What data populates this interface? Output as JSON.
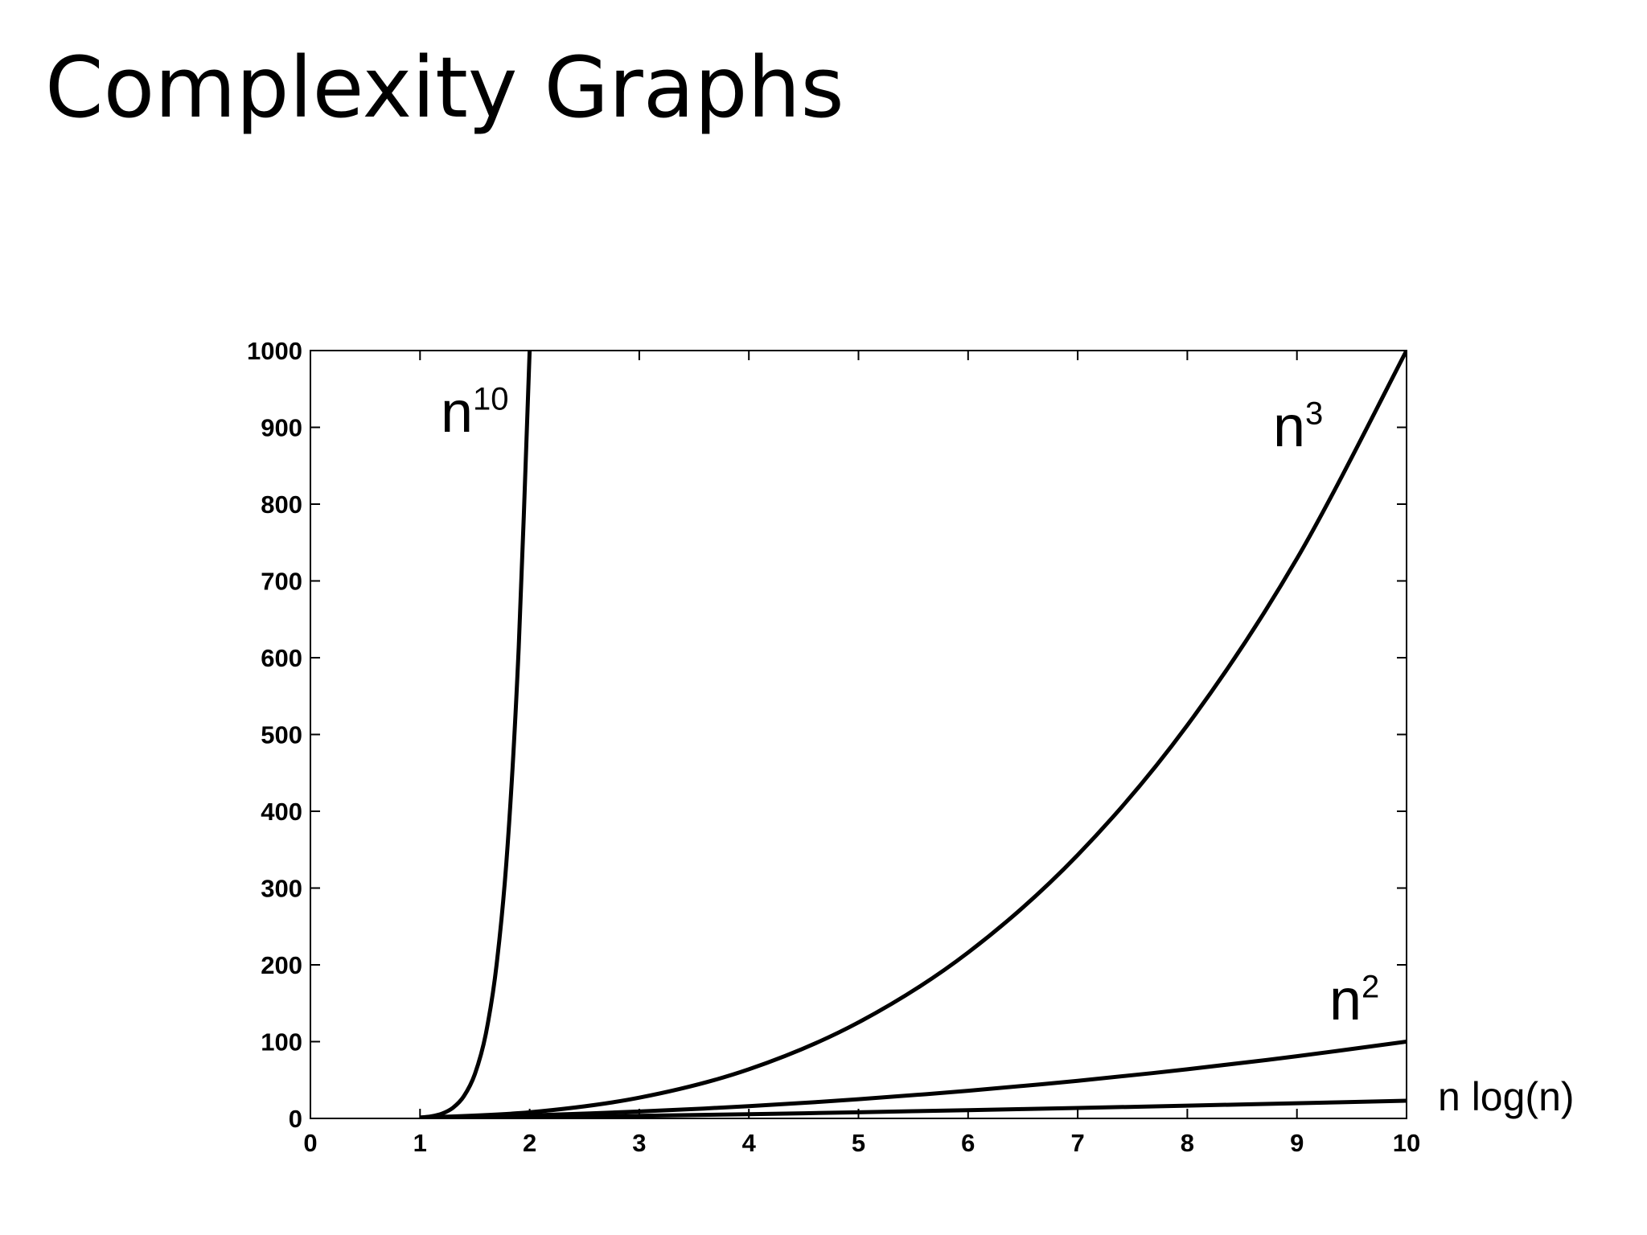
{
  "title": "Complexity Graphs",
  "chart_data": {
    "type": "line",
    "title": "",
    "xlabel": "",
    "ylabel": "",
    "xlim": [
      0,
      10
    ],
    "ylim": [
      0,
      1000
    ],
    "grid": false,
    "xticks": [
      "0",
      "1",
      "2",
      "3",
      "4",
      "5",
      "6",
      "7",
      "8",
      "9",
      "10"
    ],
    "yticks": [
      "0",
      "100",
      "200",
      "300",
      "400",
      "500",
      "600",
      "700",
      "800",
      "900",
      "1000"
    ],
    "color": "#000000",
    "series": [
      {
        "name": "n10",
        "label_base": "n",
        "label_sup": "10",
        "x": [
          1,
          1.1,
          1.2,
          1.3,
          1.4,
          1.5,
          1.6,
          1.7,
          1.8,
          1.9,
          2.0
        ],
        "y": [
          1,
          2.6,
          6.2,
          13.8,
          28.9,
          57.7,
          110,
          202,
          357,
          613,
          1000
        ]
      },
      {
        "name": "n3",
        "label_base": "n",
        "label_sup": "3",
        "x": [
          1,
          2,
          3,
          4,
          5,
          6,
          7,
          8,
          9,
          10
        ],
        "y": [
          1,
          8,
          27,
          64,
          125,
          216,
          343,
          512,
          729,
          1000
        ]
      },
      {
        "name": "n2",
        "label_base": "n",
        "label_sup": "2",
        "x": [
          1,
          2,
          3,
          4,
          5,
          6,
          7,
          8,
          9,
          10
        ],
        "y": [
          1,
          4,
          9,
          16,
          25,
          36,
          49,
          64,
          81,
          100
        ]
      },
      {
        "name": "n log(n)",
        "label_base": "n log(n)",
        "label_sup": "",
        "x": [
          1,
          2,
          3,
          4,
          5,
          6,
          7,
          8,
          9,
          10
        ],
        "y": [
          0,
          1.4,
          3.3,
          5.5,
          8.0,
          10.8,
          13.6,
          16.6,
          19.8,
          23.0
        ]
      }
    ]
  }
}
